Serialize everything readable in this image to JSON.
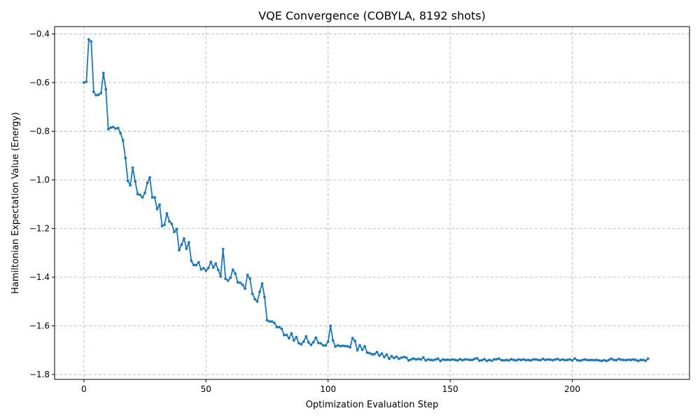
{
  "chart_data": {
    "type": "line",
    "title": "VQE Convergence (COBYLA, 8192 shots)",
    "xlabel": "Optimization Evaluation Step",
    "ylabel": "Hamiltonian Expectation Value (Energy)",
    "xlim": [
      -12,
      248
    ],
    "ylim": [
      -1.82,
      -0.37
    ],
    "xticks": [
      0,
      50,
      100,
      150,
      200
    ],
    "yticks": [
      -1.8,
      -1.6,
      -1.4,
      -1.2,
      -1.0,
      -0.8,
      -0.6,
      -0.4
    ],
    "grid": true,
    "line_color": "#1f77b4",
    "series": [
      {
        "values": [
          -0.6,
          -0.597,
          -0.423,
          -0.432,
          -0.638,
          -0.652,
          -0.65,
          -0.643,
          -0.561,
          -0.628,
          -0.792,
          -0.785,
          -0.783,
          -0.789,
          -0.787,
          -0.808,
          -0.838,
          -0.91,
          -1.004,
          -1.022,
          -0.95,
          -1.006,
          -1.058,
          -1.062,
          -1.072,
          -1.053,
          -1.012,
          -0.99,
          -1.072,
          -1.072,
          -1.12,
          -1.102,
          -1.19,
          -1.184,
          -1.138,
          -1.171,
          -1.181,
          -1.214,
          -1.202,
          -1.289,
          -1.266,
          -1.241,
          -1.283,
          -1.257,
          -1.333,
          -1.35,
          -1.35,
          -1.339,
          -1.368,
          -1.363,
          -1.373,
          -1.362,
          -1.337,
          -1.36,
          -1.344,
          -1.37,
          -1.397,
          -1.285,
          -1.406,
          -1.414,
          -1.402,
          -1.369,
          -1.385,
          -1.421,
          -1.423,
          -1.431,
          -1.447,
          -1.391,
          -1.406,
          -1.468,
          -1.49,
          -1.5,
          -1.46,
          -1.426,
          -1.482,
          -1.577,
          -1.582,
          -1.582,
          -1.588,
          -1.605,
          -1.605,
          -1.612,
          -1.638,
          -1.637,
          -1.651,
          -1.631,
          -1.66,
          -1.646,
          -1.671,
          -1.676,
          -1.665,
          -1.643,
          -1.668,
          -1.678,
          -1.667,
          -1.648,
          -1.67,
          -1.672,
          -1.68,
          -1.68,
          -1.665,
          -1.6,
          -1.66,
          -1.685,
          -1.68,
          -1.683,
          -1.682,
          -1.683,
          -1.684,
          -1.688,
          -1.65,
          -1.662,
          -1.7,
          -1.68,
          -1.698,
          -1.684,
          -1.71,
          -1.712,
          -1.717,
          -1.716,
          -1.708,
          -1.722,
          -1.714,
          -1.728,
          -1.718,
          -1.735,
          -1.725,
          -1.732,
          -1.727,
          -1.735,
          -1.731,
          -1.728,
          -1.73,
          -1.742,
          -1.738,
          -1.734,
          -1.738,
          -1.736,
          -1.738,
          -1.73,
          -1.742,
          -1.738,
          -1.74,
          -1.741,
          -1.738,
          -1.735,
          -1.744,
          -1.738,
          -1.74,
          -1.739,
          -1.74,
          -1.738,
          -1.74,
          -1.742,
          -1.737,
          -1.741,
          -1.738,
          -1.738,
          -1.74,
          -1.74,
          -1.736,
          -1.733,
          -1.743,
          -1.741,
          -1.737,
          -1.744,
          -1.74,
          -1.743,
          -1.738,
          -1.737,
          -1.735,
          -1.741,
          -1.742,
          -1.74,
          -1.742,
          -1.737,
          -1.74,
          -1.742,
          -1.738,
          -1.74,
          -1.738,
          -1.741,
          -1.74,
          -1.742,
          -1.738,
          -1.738,
          -1.74,
          -1.741,
          -1.736,
          -1.74,
          -1.738,
          -1.739,
          -1.741,
          -1.738,
          -1.736,
          -1.741,
          -1.738,
          -1.741,
          -1.74,
          -1.738,
          -1.742,
          -1.734,
          -1.741,
          -1.743,
          -1.741,
          -1.738,
          -1.74,
          -1.741,
          -1.74,
          -1.741,
          -1.74,
          -1.742,
          -1.744,
          -1.741,
          -1.744,
          -1.74,
          -1.735,
          -1.74,
          -1.741,
          -1.736,
          -1.739,
          -1.74,
          -1.741,
          -1.739,
          -1.74,
          -1.738,
          -1.74,
          -1.744,
          -1.74,
          -1.74,
          -1.743,
          -1.735
        ]
      }
    ]
  }
}
